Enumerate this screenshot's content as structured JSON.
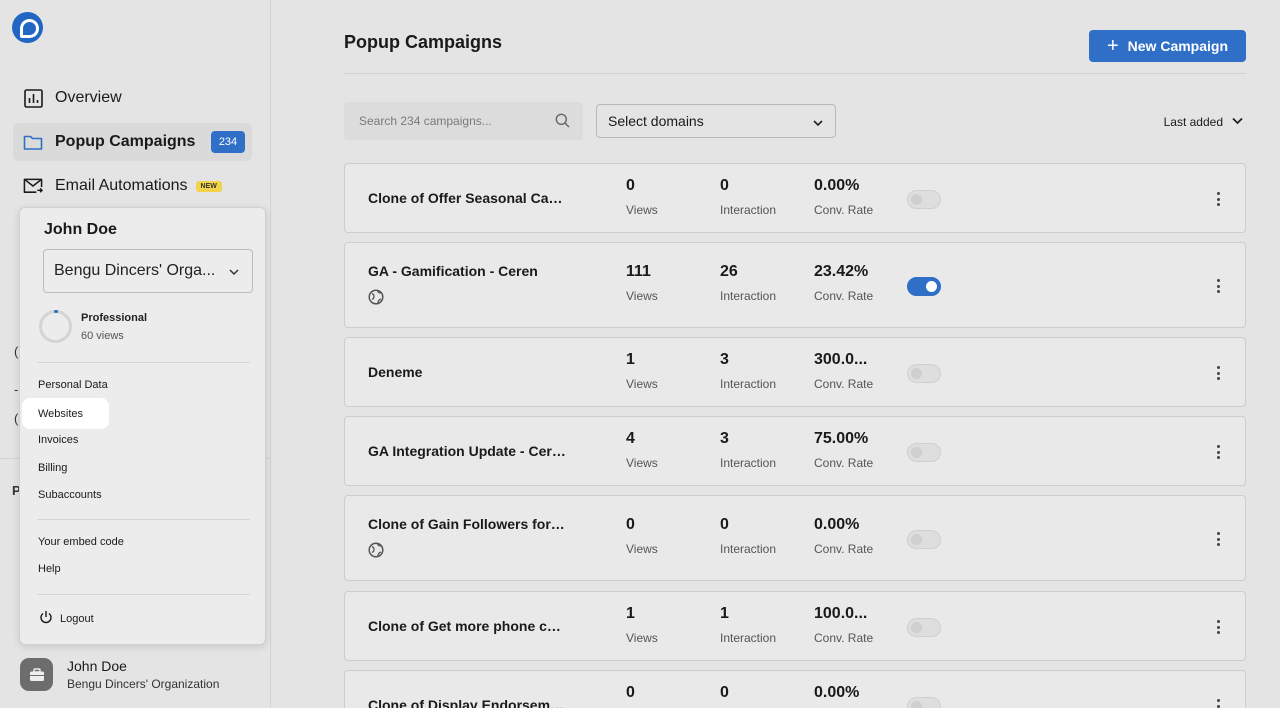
{
  "sidebar": {
    "nav": [
      {
        "label": "Overview",
        "icon": "chart-icon"
      },
      {
        "label": "Popup Campaigns",
        "icon": "folder-icon",
        "badge": "234",
        "active": true
      },
      {
        "label": "Email Automations",
        "icon": "mail-icon",
        "tag": "NEW"
      }
    ],
    "peeks": [
      "(",
      "-",
      "(",
      "P"
    ],
    "footer": {
      "name": "John Doe",
      "org": "Bengu Dincers' Organization"
    }
  },
  "menu": {
    "name": "John Doe",
    "org_select": "Bengu Dincers' Orga...",
    "plan": {
      "name": "Professional",
      "views": "60 views"
    },
    "items": [
      "Personal Data",
      "Websites",
      "Invoices",
      "Billing",
      "Subaccounts"
    ],
    "items2": [
      "Your embed code",
      "Help"
    ],
    "logout": "Logout"
  },
  "main": {
    "title": "Popup Campaigns",
    "new_button": "New Campaign",
    "search_placeholder": "Search 234 campaigns...",
    "domains_select": "Select domains",
    "sort": "Last added",
    "metric_labels": {
      "views": "Views",
      "interaction": "Interaction",
      "rate": "Conv. Rate"
    }
  },
  "campaigns": [
    {
      "name": "Clone of Offer Seasonal Camp...",
      "views": "0",
      "interaction": "0",
      "rate": "0.00%",
      "active": false,
      "globe": false
    },
    {
      "name": "GA - Gamification - Ceren",
      "views": "111",
      "interaction": "26",
      "rate": "23.42%",
      "active": true,
      "globe": true
    },
    {
      "name": "Deneme",
      "views": "1",
      "interaction": "3",
      "rate": "300.0...",
      "active": false,
      "globe": false
    },
    {
      "name": "GA Integration Update - Ceren",
      "views": "4",
      "interaction": "3",
      "rate": "75.00%",
      "active": false,
      "globe": false
    },
    {
      "name": "Clone of Gain Followers for Li...",
      "views": "0",
      "interaction": "0",
      "rate": "0.00%",
      "active": false,
      "globe": true
    },
    {
      "name": "Clone of Get more phone calls",
      "views": "1",
      "interaction": "1",
      "rate": "100.0...",
      "active": false,
      "globe": false
    },
    {
      "name": "Clone of Display Endorsement...",
      "views": "0",
      "interaction": "0",
      "rate": "0.00%",
      "active": false,
      "globe": false
    }
  ],
  "colors": {
    "accent": "#2f6fc8",
    "badge_new": "#f3d34a"
  }
}
